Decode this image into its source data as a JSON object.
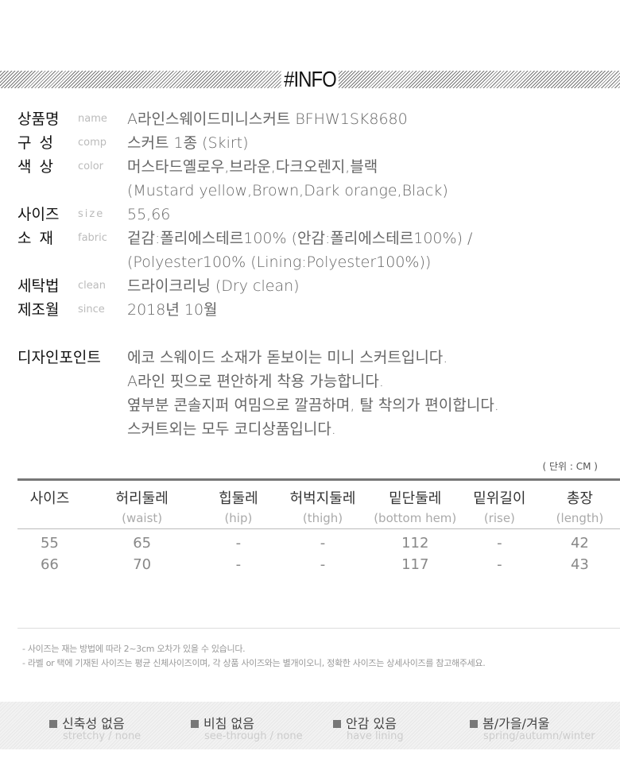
{
  "title": "#INFO",
  "info": [
    {
      "label": "상품명",
      "eng": "name",
      "value": "A라인스웨이드미니스커트  BFHW1SK8680"
    },
    {
      "label": "구 성",
      "eng": "comp",
      "value": "스커트 1종 (Skirt)"
    },
    {
      "label": "색 상",
      "eng": "color",
      "value": "머스타드옐로우,브라운,다크오렌지,블랙",
      "value2": "(Mustard yellow,Brown,Dark orange,Black)"
    },
    {
      "label": "사이즈",
      "eng": "size",
      "value": "55,66"
    },
    {
      "label": "소 재",
      "eng": "fabric",
      "value": "겉감:폴리에스테르100% (안감:폴리에스테르100%) /",
      "value2": "(Polyester100% (Lining:Polyester100%))"
    },
    {
      "label": "세탁법",
      "eng": "clean",
      "value": "드라이크리닝 (Dry clean)"
    },
    {
      "label": "제조월",
      "eng": "since",
      "value": "2018년 10월"
    }
  ],
  "design": {
    "label": "디자인포인트",
    "lines": [
      "에코 스웨이드 소재가 돋보이는 미니 스커트입니다.",
      "A라인 핏으로 편안하게 착용 가능합니다.",
      "옆부분 콘솔지퍼 여밈으로 깔끔하며, 탈 착의가 편이합니다.",
      "스커트외는 모두 코디상품입니다."
    ]
  },
  "size_table": {
    "unit": "( 단위 : CM )",
    "headers": [
      {
        "ko": "사이즈",
        "en": ""
      },
      {
        "ko": "허리둘레",
        "en": "(waist)"
      },
      {
        "ko": "힙둘레",
        "en": "(hip)"
      },
      {
        "ko": "허벅지둘레",
        "en": "(thigh)"
      },
      {
        "ko": "밑단둘레",
        "en": "(bottom hem)"
      },
      {
        "ko": "밑위길이",
        "en": "(rise)"
      },
      {
        "ko": "총장",
        "en": "(length)"
      }
    ],
    "rows": [
      [
        "55",
        "65",
        "-",
        "-",
        "112",
        "-",
        "42"
      ],
      [
        "66",
        "70",
        "-",
        "-",
        "117",
        "-",
        "43"
      ]
    ]
  },
  "notes": [
    "- 사이즈는 재는 방법에 따라 2~3cm 오차가 있을 수 있습니다.",
    "- 라벨 or 택에 기재된 사이즈는 평균 신체사이즈이며, 각 상품 사이즈와는 별개이오니, 정확한 사이즈는 상세사이즈를 참고해주세요."
  ],
  "features": [
    {
      "ko": "신축성 없음",
      "en": "stretchy / none"
    },
    {
      "ko": "비침 없음",
      "en": "see-through / none"
    },
    {
      "ko": "안감 있음",
      "en": "have lining"
    },
    {
      "ko": "봄/가을/겨울",
      "en": "spring/autumn/winter"
    }
  ]
}
